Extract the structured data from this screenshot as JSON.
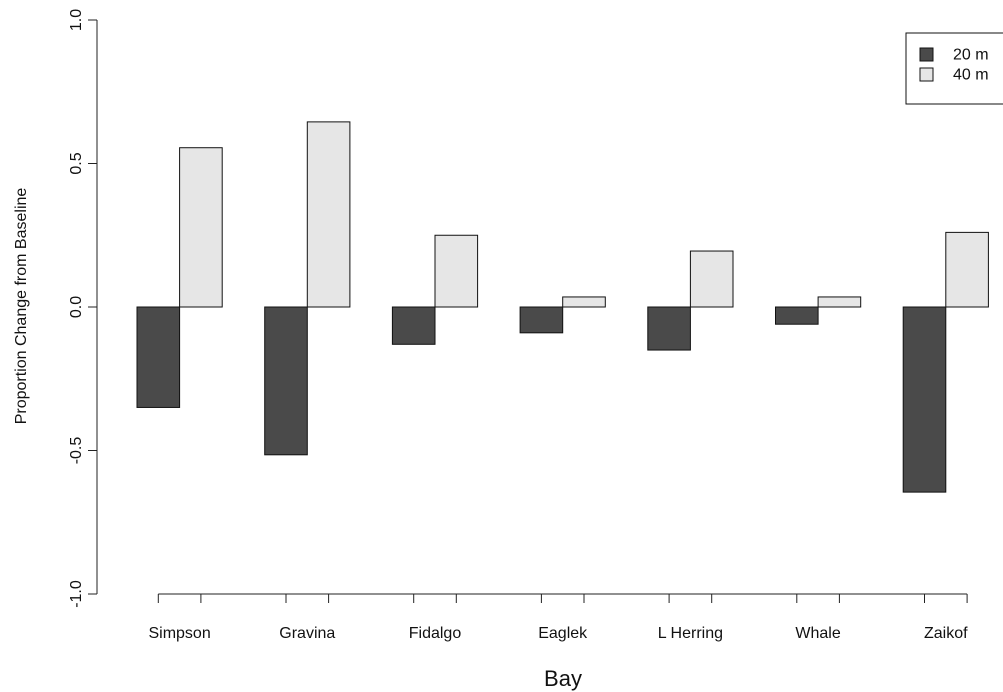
{
  "chart_data": {
    "type": "bar",
    "xlabel": "Bay",
    "ylabel": "Proportion Change from Baseline",
    "ylim": [
      -1.0,
      1.0
    ],
    "y_ticks": [
      "-1.0",
      "-0.5",
      "0.0",
      "0.5",
      "1.0"
    ],
    "y_tick_values": [
      -1.0,
      -0.5,
      0.0,
      0.5,
      1.0
    ],
    "categories": [
      "Simpson",
      "Gravina",
      "Fidalgo",
      "Eaglek",
      "L Herring",
      "Whale",
      "Zaikof"
    ],
    "series": [
      {
        "name": "20 m",
        "color": "#4a4a4a",
        "values": [
          -0.35,
          -0.515,
          -0.13,
          -0.09,
          -0.15,
          -0.06,
          -0.645
        ]
      },
      {
        "name": "40 m",
        "color": "#e6e6e6",
        "values": [
          0.555,
          0.645,
          0.25,
          0.035,
          0.195,
          0.035,
          0.26
        ]
      }
    ],
    "grid": false,
    "legend_position": "top-right"
  }
}
